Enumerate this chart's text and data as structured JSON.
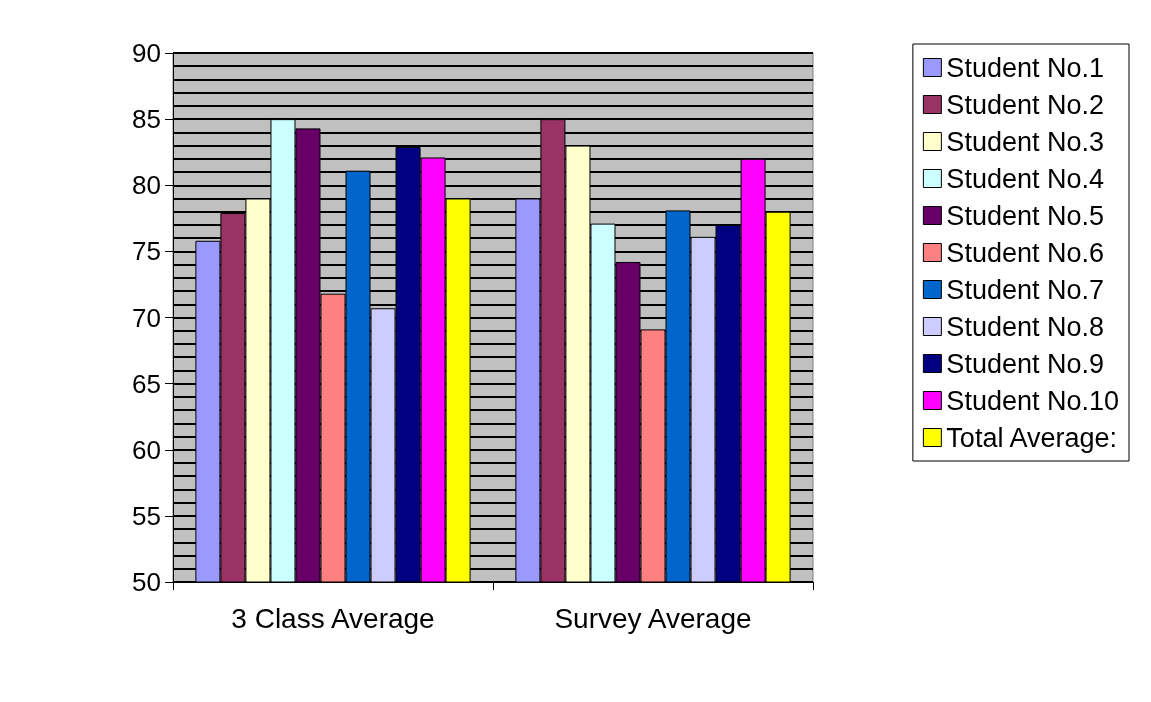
{
  "chart_data": {
    "type": "bar",
    "categories": [
      "3 Class Average",
      "Survey Average"
    ],
    "series": [
      {
        "name": "Student No.1",
        "color": "#9999ff",
        "values": [
          75.8,
          79
        ]
      },
      {
        "name": "Student No.2",
        "color": "#993366",
        "values": [
          77.9,
          85
        ]
      },
      {
        "name": "Student No.3",
        "color": "#ffffcc",
        "values": [
          79,
          83
        ]
      },
      {
        "name": "Student No.4",
        "color": "#ccffff",
        "values": [
          85,
          77.1
        ]
      },
      {
        "name": "Student No.5",
        "color": "#660066",
        "values": [
          84.3,
          74.2
        ]
      },
      {
        "name": "Student No.6",
        "color": "#ff8080",
        "values": [
          71.8,
          69.1
        ]
      },
      {
        "name": "Student No.7",
        "color": "#0066cc",
        "values": [
          81.1,
          78.1
        ]
      },
      {
        "name": "Student No.8",
        "color": "#ccccff",
        "values": [
          70.7,
          76.1
        ]
      },
      {
        "name": "Student No.9",
        "color": "#000080",
        "values": [
          82.9,
          77
        ]
      },
      {
        "name": "Student No.10",
        "color": "#ff00ff",
        "values": [
          82.1,
          82
        ]
      },
      {
        "name": "Total Average:",
        "color": "#ffff00",
        "values": [
          79,
          78
        ]
      }
    ],
    "ylim": [
      50,
      90
    ],
    "yticks": [
      50,
      55,
      60,
      65,
      70,
      75,
      80,
      85,
      90
    ],
    "grid": "y",
    "legend": "right"
  }
}
